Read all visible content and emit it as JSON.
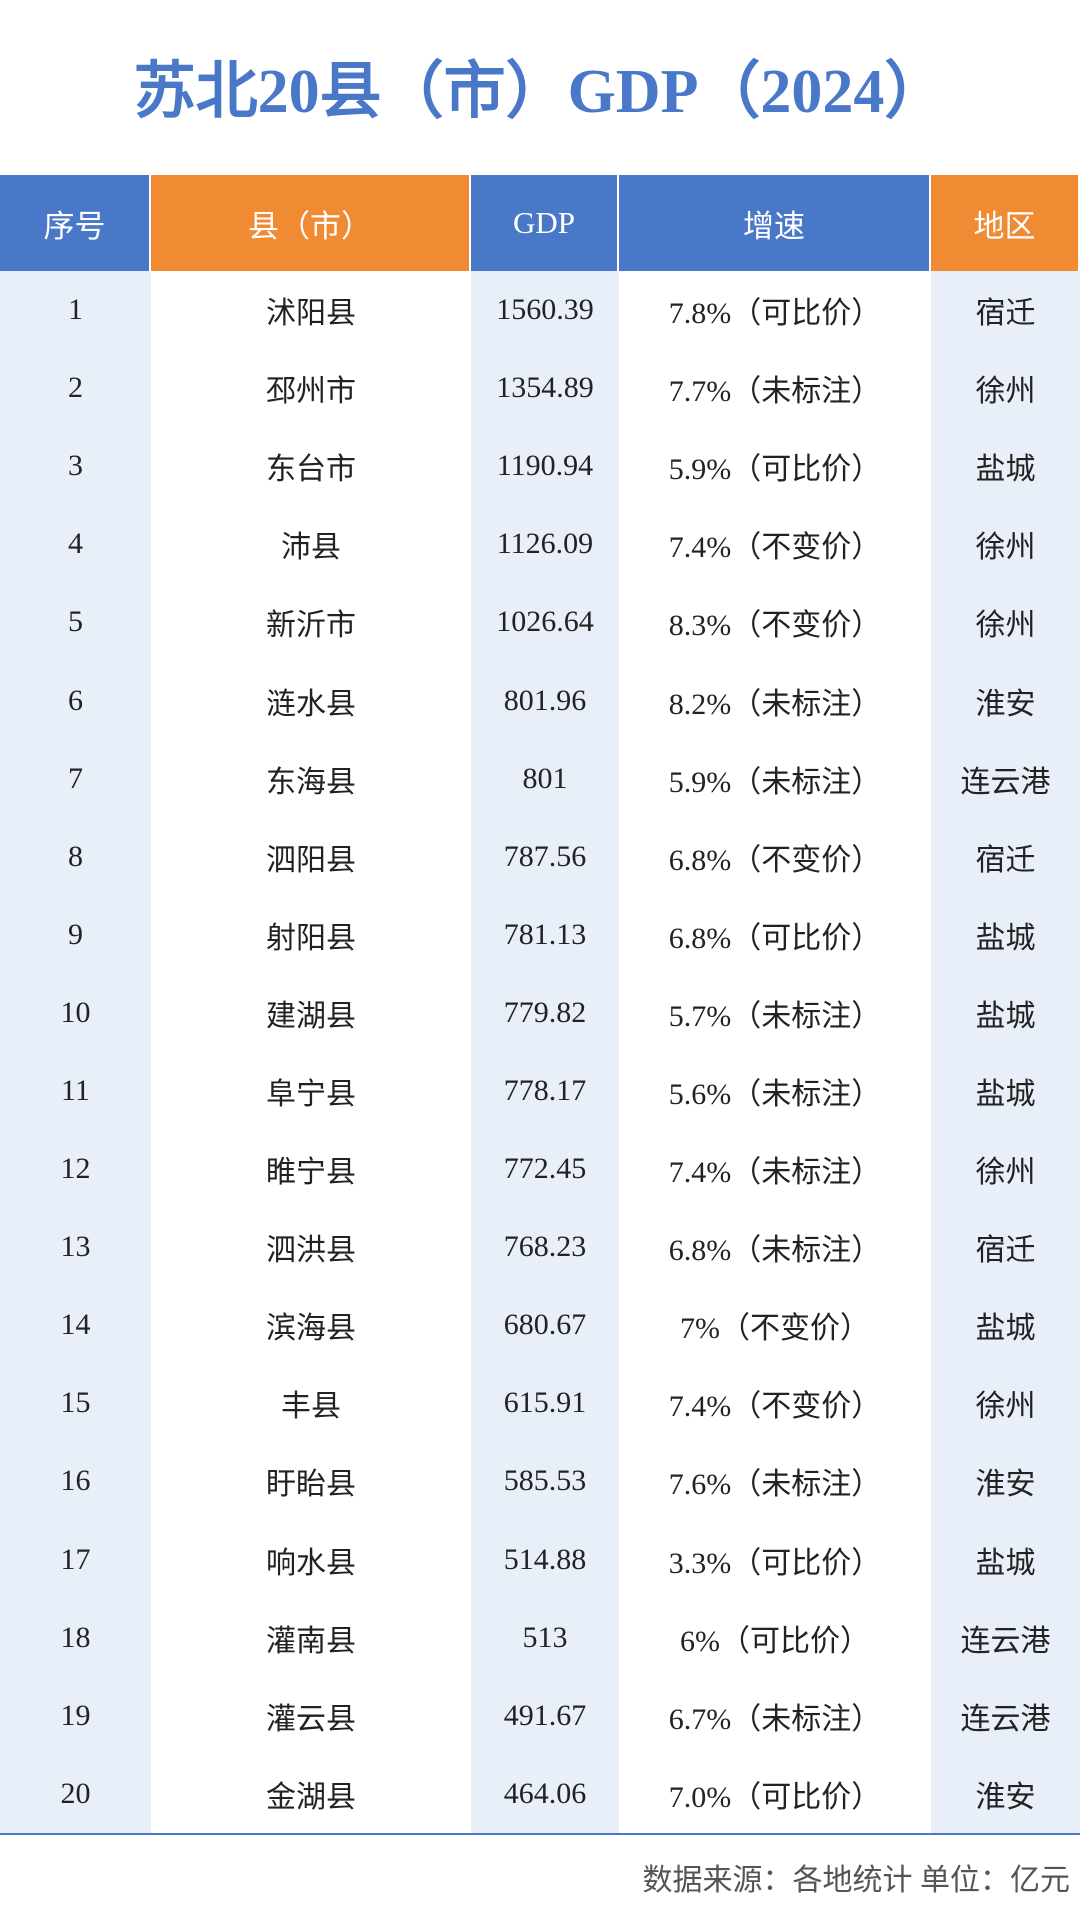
{
  "header": {
    "title": "苏北20县（市）GDP（2024）"
  },
  "table": {
    "columns": [
      "序号",
      "县（市）",
      "GDP",
      "增速",
      "地区"
    ],
    "rows": [
      [
        "1",
        "沭阳县",
        "1560.39",
        "7.8%（可比价）",
        "宿迁"
      ],
      [
        "2",
        "邳州市",
        "1354.89",
        "7.7%（未标注）",
        "徐州"
      ],
      [
        "3",
        "东台市",
        "1190.94",
        "5.9%（可比价）",
        "盐城"
      ],
      [
        "4",
        "沛县",
        "1126.09",
        "7.4%（不变价）",
        "徐州"
      ],
      [
        "5",
        "新沂市",
        "1026.64",
        "8.3%（不变价）",
        "徐州"
      ],
      [
        "6",
        "涟水县",
        "801.96",
        "8.2%（未标注）",
        "淮安"
      ],
      [
        "7",
        "东海县",
        "801",
        "5.9%（未标注）",
        "连云港"
      ],
      [
        "8",
        "泗阳县",
        "787.56",
        "6.8%（不变价）",
        "宿迁"
      ],
      [
        "9",
        "射阳县",
        "781.13",
        "6.8%（可比价）",
        "盐城"
      ],
      [
        "10",
        "建湖县",
        "779.82",
        "5.7%（未标注）",
        "盐城"
      ],
      [
        "11",
        "阜宁县",
        "778.17",
        "5.6%（未标注）",
        "盐城"
      ],
      [
        "12",
        "睢宁县",
        "772.45",
        "7.4%（未标注）",
        "徐州"
      ],
      [
        "13",
        "泗洪县",
        "768.23",
        "6.8%（未标注）",
        "宿迁"
      ],
      [
        "14",
        "滨海县",
        "680.67",
        "7%（不变价）",
        "盐城"
      ],
      [
        "15",
        "丰县",
        "615.91",
        "7.4%（不变价）",
        "徐州"
      ],
      [
        "16",
        "盱眙县",
        "585.53",
        "7.6%（未标注）",
        "淮安"
      ],
      [
        "17",
        "响水县",
        "514.88",
        "3.3%（可比价）",
        "盐城"
      ],
      [
        "18",
        "灌南县",
        "513",
        "6%（可比价）",
        "连云港"
      ],
      [
        "19",
        "灌云县",
        "491.67",
        "6.7%（未标注）",
        "连云港"
      ],
      [
        "20",
        "金湖县",
        "464.06",
        "7.0%（可比价）",
        "淮安"
      ]
    ]
  },
  "footer": {
    "note": "数据来源：各地统计 单位：亿元"
  }
}
